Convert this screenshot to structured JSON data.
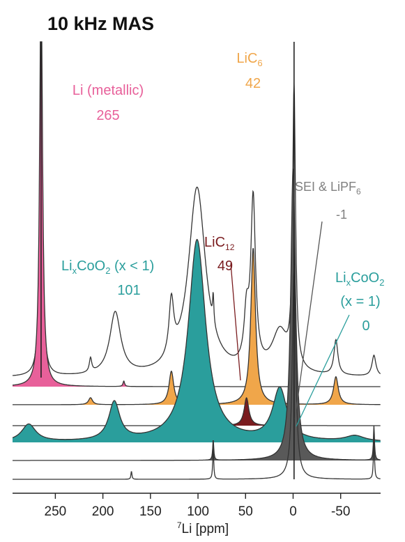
{
  "chart_data": {
    "type": "line",
    "title": "10 kHz MAS",
    "xlabel_sup": "7",
    "xlabel": "Li [ppm]",
    "xlim": [
      295,
      -92
    ],
    "xticks": [
      250,
      200,
      150,
      100,
      50,
      0,
      -50
    ],
    "xtick_labels": [
      "250",
      "200",
      "150",
      "100",
      "50",
      "0",
      "-50"
    ],
    "traces": [
      {
        "name": "trace-sum",
        "peaks": [
          [
            265,
            2.0,
            340
          ],
          [
            213,
            1.5,
            20
          ],
          [
            187,
            7,
            90
          ],
          [
            128,
            3,
            80
          ],
          [
            101,
            11,
            270
          ],
          [
            84,
            0.8,
            40
          ],
          [
            49,
            3,
            70
          ],
          [
            42,
            3,
            240
          ],
          [
            14,
            10,
            60
          ],
          [
            -1,
            1.8,
            400
          ],
          [
            -45,
            2.5,
            50
          ],
          [
            -85,
            2.5,
            30
          ]
        ],
        "spikes": [
          [
            265,
            0.5,
            340
          ]
        ],
        "color": "#333333"
      },
      {
        "name": "trace-metallic",
        "peaks": [
          [
            265,
            1.8,
            600
          ],
          [
            178,
            1.0,
            8
          ]
        ],
        "fill": "#e8609a",
        "color": "#333333"
      },
      {
        "name": "trace-lic6",
        "peaks": [
          [
            213,
            2.5,
            10
          ],
          [
            128,
            3,
            48
          ],
          [
            42,
            3,
            225
          ],
          [
            -45,
            3,
            40
          ]
        ],
        "fill": "#f0a64a",
        "color": "#333333"
      },
      {
        "name": "trace-lic12",
        "peaks": [
          [
            49,
            3,
            40
          ]
        ],
        "fill": "#7a1c1f",
        "color": "#333333"
      },
      {
        "name": "trace-lixcoo2",
        "peaks": [
          [
            278,
            9,
            25
          ],
          [
            188,
            7,
            55
          ],
          [
            101,
            11,
            290
          ],
          [
            14,
            9,
            75
          ],
          [
            -65,
            12,
            8
          ]
        ],
        "fill": "#2a9e9c",
        "color": "#333333"
      },
      {
        "name": "trace-lixcoo2-x1",
        "peaks": [
          [
            0,
            3,
            420
          ],
          [
            84,
            0.7,
            30
          ],
          [
            -85,
            0.7,
            50
          ]
        ],
        "fill": "#595959",
        "color": "#333333"
      },
      {
        "name": "trace-sei",
        "peaks": [
          [
            -1,
            2.2,
            300
          ],
          [
            84,
            0.6,
            50
          ],
          [
            170,
            0.6,
            12
          ],
          [
            -85,
            0.6,
            70
          ]
        ],
        "color": "#333333"
      }
    ],
    "labels": {
      "metallic_name": "Li (metallic)",
      "metallic_shift": "265",
      "lic6_name": "LiC",
      "lic6_sub": "6",
      "lic6_shift": "42",
      "sei_name": "SEI & LiPF",
      "sei_sub": "6",
      "sei_shift": "-1",
      "lic12_name": "LiC",
      "lic12_sub": "12",
      "lic12_shift": "49",
      "lixcoo2_li": "Li",
      "lixcoo2_x": "x",
      "lixcoo2_co": "CoO",
      "lixcoo2_2": "2",
      "lixcoo2_cond": " (x < 1)",
      "lixcoo2_shift": "101",
      "lixcoo2b_li": "Li",
      "lixcoo2b_x": "x",
      "lixcoo2b_co": "CoO",
      "lixcoo2b_2": "2",
      "lixcoo2b_cond": "(x = 1)",
      "lixcoo2b_shift": "0"
    },
    "label_colors": {
      "metallic": "#e8609a",
      "lic6": "#f0a64a",
      "sei": "#808080",
      "lic12": "#7a1c1f",
      "lixcoo2": "#2a9e9c",
      "lixcoo2b": "#2a9e9c"
    }
  }
}
